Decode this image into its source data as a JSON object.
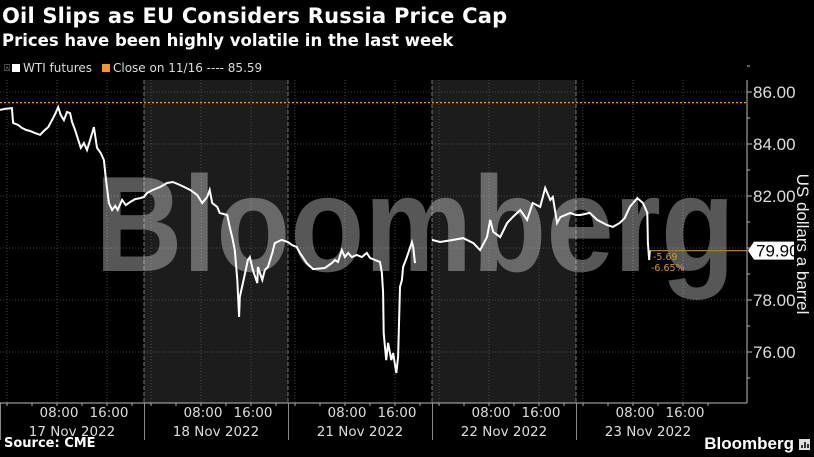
{
  "header": {
    "title": "Oil Slips as EU Considers Russia Price Cap",
    "subtitle": "Prices have been highly volatile in the last week"
  },
  "legend": {
    "pin_icon": "pin-icon",
    "items": [
      {
        "label": "WTI futures",
        "color": "#ffffff"
      },
      {
        "label": "Close on 11/16 ---- 85.59",
        "color": "#f39a1d"
      }
    ]
  },
  "footer": {
    "source": "Source: CME",
    "brand": "Bloomberg",
    "brand_icon": "bloomberg-chart-icon"
  },
  "watermark": "Bloomberg",
  "chart_data": {
    "type": "line",
    "title": "Oil Slips as EU Considers Russia Price Cap",
    "subtitle": "Prices have been highly volatile in the last week",
    "xlabel": "",
    "ylabel": "US dollars a barrel",
    "ylim": [
      74,
      87.3
    ],
    "yticks": [
      86,
      84,
      82,
      78,
      76
    ],
    "ytick_labels": [
      "86.00",
      "84.00",
      "82.00",
      "78.00",
      "76.00"
    ],
    "grid": true,
    "legend_position": "top-left",
    "x_unit": "trading hours since chart start (each session = 23h)",
    "sessions": [
      {
        "date": "17 Nov 2022",
        "ticks": [
          "08:00",
          "16:00"
        ],
        "shaded": false
      },
      {
        "date": "18 Nov 2022",
        "ticks": [
          "08:00",
          "16:00"
        ],
        "shaded": true
      },
      {
        "date": "21 Nov 2022",
        "ticks": [
          "08:00",
          "16:00"
        ],
        "shaded": false
      },
      {
        "date": "22 Nov 2022",
        "ticks": [
          "08:00",
          "16:00"
        ],
        "shaded": true
      },
      {
        "date": "23 Nov 2022",
        "ticks": [
          "08:00",
          "16:00"
        ],
        "shaded": false
      }
    ],
    "reference_line": {
      "name": "Close on 11/16",
      "value": 85.59,
      "color": "#f39a1d"
    },
    "last_value": {
      "label": "79.90",
      "value": 79.9,
      "change": "-5.69",
      "change_pct": "-6.65%"
    },
    "series": [
      {
        "name": "WTI futures",
        "color": "#ffffff",
        "points": [
          [
            0.0,
            85.31
          ],
          [
            0.8,
            85.35
          ],
          [
            1.9,
            85.38
          ],
          [
            2.1,
            84.81
          ],
          [
            2.9,
            84.73
          ],
          [
            3.5,
            84.62
          ],
          [
            4.2,
            84.54
          ],
          [
            4.8,
            84.5
          ],
          [
            5.6,
            84.42
          ],
          [
            6.4,
            84.35
          ],
          [
            7.0,
            84.5
          ],
          [
            7.7,
            84.65
          ],
          [
            8.3,
            84.92
          ],
          [
            8.8,
            85.15
          ],
          [
            9.3,
            85.42
          ],
          [
            9.7,
            85.12
          ],
          [
            10.2,
            84.92
          ],
          [
            10.7,
            85.23
          ],
          [
            11.2,
            85.19
          ],
          [
            11.5,
            84.85
          ],
          [
            12.0,
            84.54
          ],
          [
            12.5,
            84.15
          ],
          [
            12.9,
            83.85
          ],
          [
            13.4,
            84.04
          ],
          [
            13.9,
            83.77
          ],
          [
            14.4,
            84.15
          ],
          [
            15.0,
            84.65
          ],
          [
            15.5,
            83.85
          ],
          [
            16.1,
            83.65
          ],
          [
            16.6,
            83.38
          ],
          [
            16.9,
            82.69
          ],
          [
            17.1,
            82.31
          ],
          [
            17.4,
            81.73
          ],
          [
            17.9,
            81.46
          ],
          [
            18.4,
            81.62
          ],
          [
            18.8,
            81.46
          ],
          [
            19.5,
            81.85
          ],
          [
            20.1,
            81.65
          ],
          [
            20.8,
            81.77
          ],
          [
            21.6,
            81.88
          ],
          [
            22.4,
            81.92
          ],
          [
            23.0,
            81.96
          ],
          [
            23.5,
            82.12
          ],
          [
            24.4,
            82.23
          ],
          [
            25.6,
            82.35
          ],
          [
            26.7,
            82.5
          ],
          [
            27.6,
            82.54
          ],
          [
            28.8,
            82.42
          ],
          [
            30.4,
            82.23
          ],
          [
            31.5,
            82.04
          ],
          [
            32.3,
            81.73
          ],
          [
            33.1,
            81.96
          ],
          [
            33.5,
            82.23
          ],
          [
            33.9,
            81.73
          ],
          [
            34.7,
            81.58
          ],
          [
            35.1,
            81.35
          ],
          [
            36.3,
            81.27
          ],
          [
            36.7,
            80.81
          ],
          [
            37.1,
            80.42
          ],
          [
            37.5,
            79.92
          ],
          [
            37.9,
            78.77
          ],
          [
            38.2,
            77.35
          ],
          [
            38.3,
            78.12
          ],
          [
            38.8,
            78.65
          ],
          [
            39.6,
            79.54
          ],
          [
            39.9,
            79.65
          ],
          [
            40.4,
            79.15
          ],
          [
            41.1,
            78.65
          ],
          [
            41.2,
            79.27
          ],
          [
            41.9,
            78.77
          ],
          [
            42.3,
            79.15
          ],
          [
            42.8,
            79.27
          ],
          [
            43.5,
            79.81
          ],
          [
            43.9,
            80.19
          ],
          [
            45.0,
            80.31
          ],
          [
            46.0,
            80.23
          ],
          [
            46.6,
            80.12
          ],
          [
            47.4,
            80.04
          ],
          [
            47.9,
            79.81
          ],
          [
            49.0,
            79.42
          ],
          [
            50.0,
            79.19
          ],
          [
            51.9,
            79.23
          ],
          [
            53.0,
            79.42
          ],
          [
            53.5,
            79.54
          ],
          [
            54.0,
            79.46
          ],
          [
            54.6,
            79.92
          ],
          [
            55.1,
            79.65
          ],
          [
            55.6,
            79.81
          ],
          [
            56.2,
            79.65
          ],
          [
            57.0,
            79.73
          ],
          [
            57.8,
            79.65
          ],
          [
            58.6,
            79.81
          ],
          [
            59.1,
            79.62
          ],
          [
            59.9,
            79.54
          ],
          [
            60.7,
            79.46
          ],
          [
            61.0,
            79.04
          ],
          [
            61.2,
            78.27
          ],
          [
            61.3,
            76.73
          ],
          [
            61.7,
            75.69
          ],
          [
            62.0,
            76.35
          ],
          [
            62.5,
            75.69
          ],
          [
            62.8,
            75.96
          ],
          [
            63.3,
            75.19
          ],
          [
            63.6,
            75.81
          ],
          [
            63.9,
            78.5
          ],
          [
            64.2,
            78.77
          ],
          [
            64.4,
            79.27
          ],
          [
            65.0,
            79.65
          ],
          [
            65.8,
            80.23
          ],
          [
            66.0,
            80.04
          ],
          [
            66.3,
            79.42
          ],
          null,
          [
            69.0,
            80.31
          ],
          [
            70.3,
            80.23
          ],
          [
            72.4,
            80.31
          ],
          [
            74.0,
            80.38
          ],
          [
            75.6,
            80.19
          ],
          [
            76.7,
            79.92
          ],
          [
            77.8,
            80.42
          ],
          [
            78.3,
            81.08
          ],
          [
            78.8,
            80.62
          ],
          [
            79.9,
            80.42
          ],
          [
            81.0,
            80.96
          ],
          [
            81.9,
            81.19
          ],
          [
            83.1,
            81.46
          ],
          [
            84.2,
            81.08
          ],
          [
            85.1,
            81.73
          ],
          [
            86.3,
            81.58
          ],
          [
            87.1,
            82.31
          ],
          [
            87.9,
            81.85
          ],
          [
            88.3,
            81.96
          ],
          [
            89.0,
            80.96
          ],
          [
            89.5,
            81.19
          ],
          [
            91.1,
            81.35
          ],
          [
            92.0,
            81.27
          ],
          [
            92.7,
            81.27
          ],
          [
            94.2,
            81.35
          ],
          [
            95.4,
            81.08
          ],
          [
            97.0,
            80.88
          ],
          [
            97.9,
            80.81
          ],
          [
            99.0,
            80.96
          ],
          [
            99.8,
            81.15
          ],
          [
            100.6,
            81.58
          ],
          [
            101.8,
            81.92
          ],
          [
            102.7,
            81.73
          ],
          [
            103.4,
            81.35
          ],
          [
            103.5,
            80.19
          ],
          [
            103.7,
            79.54
          ],
          [
            103.8,
            79.9
          ]
        ]
      }
    ]
  }
}
